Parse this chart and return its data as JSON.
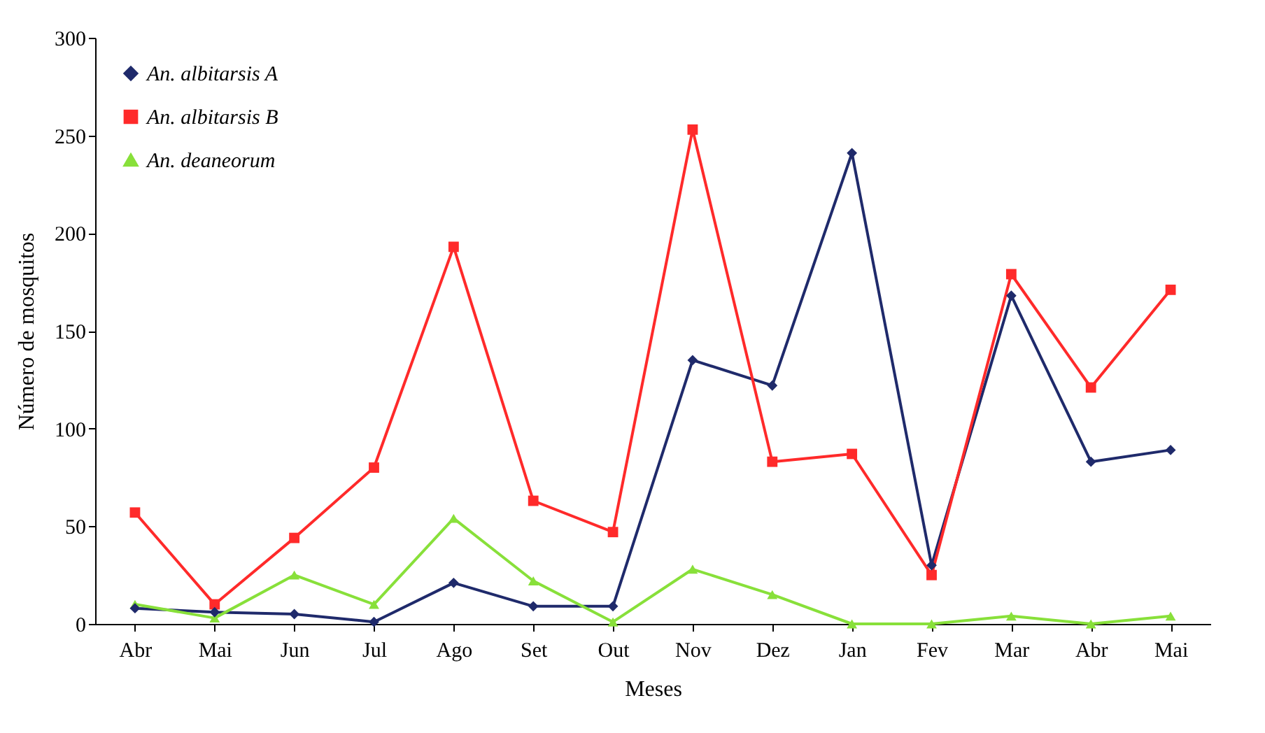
{
  "chart_data": {
    "type": "line",
    "xlabel": "Meses",
    "ylabel": "Número de mosquitos",
    "categories": [
      "Abr",
      "Mai",
      "Jun",
      "Jul",
      "Ago",
      "Set",
      "Out",
      "Nov",
      "Dez",
      "Jan",
      "Fev",
      "Mar",
      "Abr",
      "Mai"
    ],
    "series": [
      {
        "name": "An. albitarsis A",
        "color": "#1f2a6b",
        "marker": "diamond",
        "values": [
          8,
          6,
          5,
          1,
          21,
          9,
          9,
          135,
          122,
          241,
          30,
          168,
          83,
          89
        ]
      },
      {
        "name": "An. albitarsis B",
        "color": "#ff2a2a",
        "marker": "square",
        "values": [
          57,
          10,
          44,
          80,
          193,
          63,
          47,
          253,
          83,
          87,
          25,
          179,
          121,
          171
        ]
      },
      {
        "name": "An. deaneorum",
        "color": "#88e03a",
        "marker": "triangle",
        "values": [
          10,
          3,
          25,
          10,
          54,
          22,
          1,
          28,
          15,
          0,
          0,
          4,
          0,
          4
        ]
      }
    ],
    "ylim": [
      0,
      300
    ],
    "yticks": [
      0,
      50,
      100,
      150,
      200,
      250,
      300
    ],
    "grid": false,
    "legend": "top left",
    "line_style": "solid"
  }
}
